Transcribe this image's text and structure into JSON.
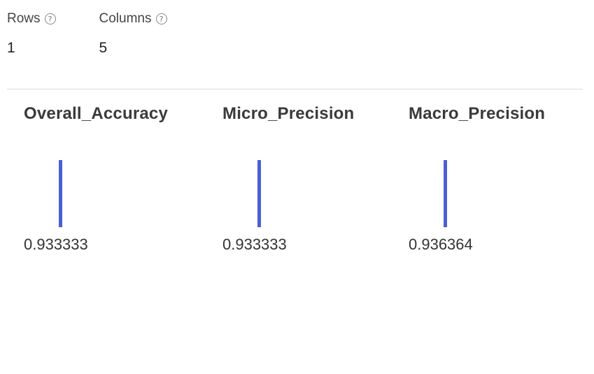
{
  "stats": {
    "rows": {
      "label": "Rows",
      "value": "1",
      "help_icon": "help-circle-icon"
    },
    "columns": {
      "label": "Columns",
      "value": "5",
      "help_icon": "help-circle-icon"
    }
  },
  "metric_columns": [
    {
      "name": "Overall_Accuracy",
      "value": "0.933333",
      "level": 0.933333
    },
    {
      "name": "Micro_Precision",
      "value": "0.933333",
      "level": 0.933333
    },
    {
      "name": "Macro_Precision",
      "value": "0.936364",
      "level": 0.936364
    }
  ],
  "colors": {
    "bar": "#4a5fd6",
    "divider": "#dcdcdc"
  }
}
